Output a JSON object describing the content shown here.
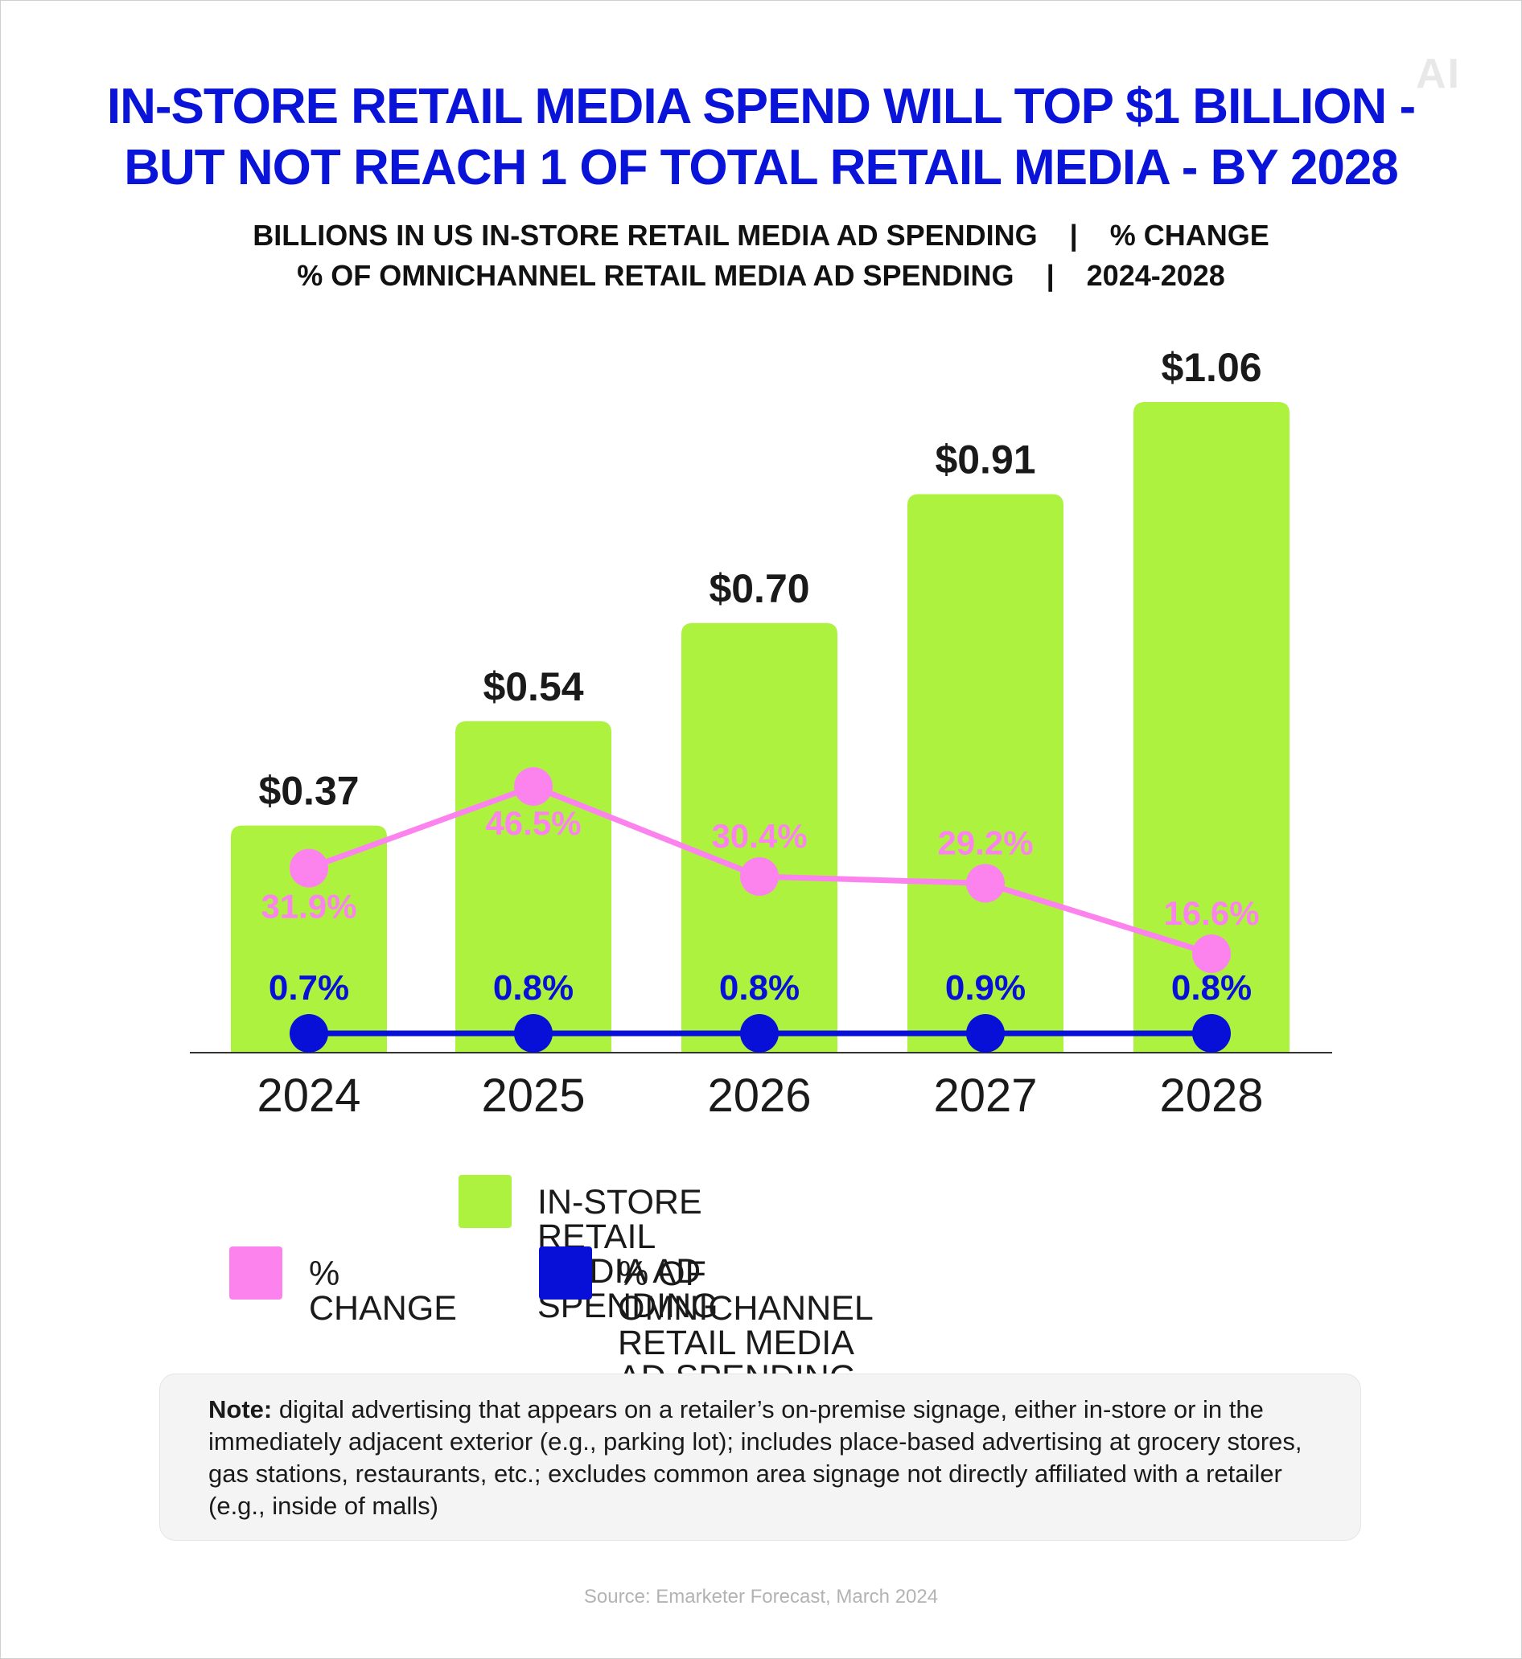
{
  "logo": "AI",
  "title_line1": "IN-STORE RETAIL MEDIA SPEND WILL TOP $1 BILLION -",
  "title_line2": "BUT NOT REACH 1 OF TOTAL RETAIL MEDIA - BY 2028",
  "subtitle_line1": "BILLIONS IN US IN-STORE RETAIL MEDIA AD SPENDING    |    % CHANGE",
  "subtitle_line2": "% OF OMNICHANNEL RETAIL MEDIA AD SPENDING    |    2024-2028",
  "colors": {
    "bar": "#adf23f",
    "change": "#fc83ee",
    "share": "#0810d8",
    "title": "#0a14d8"
  },
  "chart_data": {
    "type": "bar",
    "categories": [
      "2024",
      "2025",
      "2026",
      "2027",
      "2028"
    ],
    "series": [
      {
        "name": "IN-STORE RETAIL MEDIA AD SPENDING",
        "kind": "bar",
        "values": [
          0.37,
          0.54,
          0.7,
          0.91,
          1.06
        ],
        "labels": [
          "$0.37",
          "$0.54",
          "$0.70",
          "$0.91",
          "$1.06"
        ]
      },
      {
        "name": "% CHANGE",
        "kind": "line",
        "values": [
          31.9,
          46.5,
          30.4,
          29.2,
          16.6
        ],
        "labels": [
          "31.9%",
          "46.5%",
          "30.4%",
          "29.2%",
          "16.6%"
        ]
      },
      {
        "name": "% OF OMNICHANNEL RETAIL MEDIA AD SPENDING",
        "kind": "line",
        "values": [
          0.7,
          0.8,
          0.8,
          0.9,
          0.8
        ],
        "labels": [
          "0.7%",
          "0.8%",
          "0.8%",
          "0.9%",
          "0.8%"
        ]
      }
    ],
    "ylabel": "Billions",
    "ylim": [
      0,
      1.1
    ]
  },
  "legend": {
    "bar": "IN-STORE RETAIL MEDIA AD SPENDING",
    "change": "% CHANGE",
    "share": "% OF OMNICHANNEL RETAIL MEDIA AD SPENDING"
  },
  "note": {
    "label": "Note:",
    "text": "digital advertising that appears on a retailer’s on-premise signage, either in-store or in the immediately adjacent exterior (e.g., parking lot); includes place-based advertising at grocery stores, gas stations, restaurants, etc.; excludes common area signage not directly affiliated with a retailer (e.g., inside of malls)"
  },
  "source": "Source: Emarketer Forecast, March 2024"
}
